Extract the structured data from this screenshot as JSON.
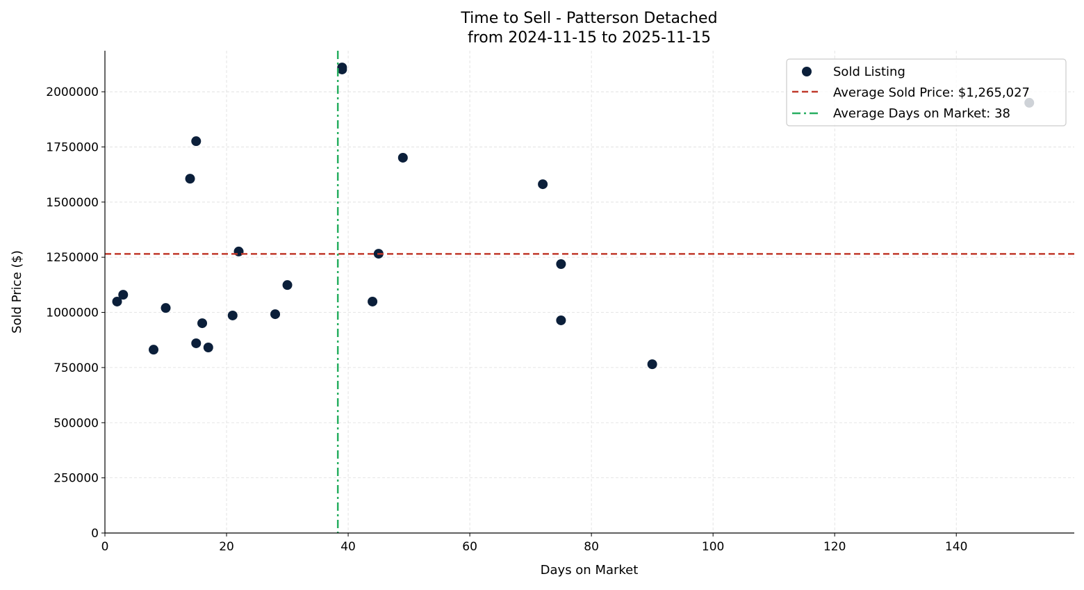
{
  "chart_data": {
    "type": "scatter",
    "title": "Time to Sell - Patterson Detached",
    "subtitle": "from 2024-11-15 to 2025-11-15",
    "xlabel": "Days on Market",
    "ylabel": "Sold Price ($)",
    "xlim": [
      0,
      159.4
    ],
    "ylim": [
      0,
      2186000
    ],
    "xticks": [
      0,
      20,
      40,
      60,
      80,
      100,
      120,
      140
    ],
    "yticks": [
      0,
      250000,
      500000,
      750000,
      1000000,
      1250000,
      1500000,
      1750000,
      2000000
    ],
    "grid": true,
    "legend_position": "top-right",
    "series": [
      {
        "name": "Sold Listing",
        "color": "#0b1f3a",
        "points": [
          [
            2,
            1049000
          ],
          [
            3,
            1080000
          ],
          [
            8,
            831000
          ],
          [
            10,
            1020000
          ],
          [
            14,
            1606000
          ],
          [
            15,
            1776000
          ],
          [
            15,
            860000
          ],
          [
            16,
            951000
          ],
          [
            17,
            841000
          ],
          [
            21,
            986000
          ],
          [
            22,
            1276000
          ],
          [
            28,
            992000
          ],
          [
            30,
            1124000
          ],
          [
            39,
            2110000
          ],
          [
            39,
            2101000
          ],
          [
            44,
            1049000
          ],
          [
            45,
            1266000
          ],
          [
            49,
            1701000
          ],
          [
            72,
            1581000
          ],
          [
            75,
            1219000
          ],
          [
            75,
            964000
          ],
          [
            90,
            765000
          ],
          [
            152,
            1950000
          ]
        ]
      }
    ],
    "reference_lines": [
      {
        "name": "Average Sold Price: $1,265,027",
        "orientation": "horizontal",
        "value": 1265027,
        "color": "#c0392b",
        "style": "dashed"
      },
      {
        "name": "Average Days on Market: 38",
        "orientation": "vertical",
        "value": 38.3,
        "color": "#27ae60",
        "style": "dashdot"
      }
    ]
  }
}
